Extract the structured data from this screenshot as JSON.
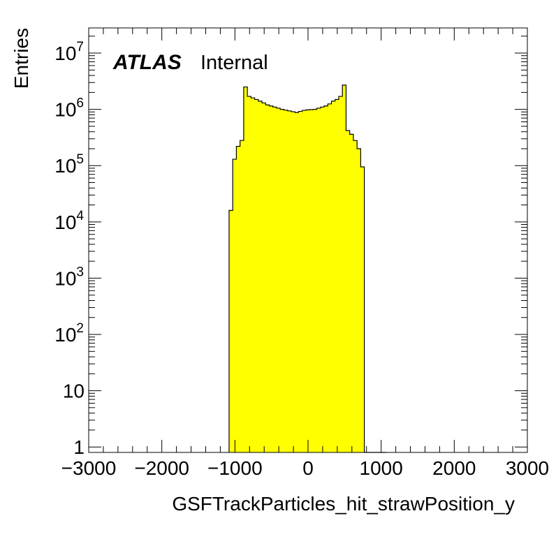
{
  "chart_data": {
    "type": "bar",
    "title": "",
    "xlabel": "GSFTrackParticles_hit_strawPosition_y",
    "ylabel": "Entries",
    "xlim": [
      -3000,
      3000
    ],
    "ylim": [
      0.8,
      28000000
    ],
    "log_y": true,
    "grid": false,
    "legend": "none",
    "fill_color": "#ffff00",
    "line_color": "#000000",
    "label": {
      "experiment": "ATLAS",
      "status": "Internal"
    },
    "x_ticks": [
      -3000,
      -2000,
      -1000,
      0,
      1000,
      2000,
      3000
    ],
    "x_tick_labels": [
      "−3000",
      "−2000",
      "−1000",
      "0",
      "1000",
      "2000",
      "3000"
    ],
    "y_ticks": [
      {
        "value": 1,
        "base": "1",
        "exp": ""
      },
      {
        "value": 10,
        "base": "10",
        "exp": ""
      },
      {
        "value": 100,
        "base": "10",
        "exp": "2"
      },
      {
        "value": 1000,
        "base": "10",
        "exp": "3"
      },
      {
        "value": 10000,
        "base": "10",
        "exp": "4"
      },
      {
        "value": 100000,
        "base": "10",
        "exp": "5"
      },
      {
        "value": 1000000,
        "base": "10",
        "exp": "6"
      },
      {
        "value": 10000000,
        "base": "10",
        "exp": "7"
      }
    ],
    "bin_edges": [
      -1080,
      -1030,
      -980,
      -930,
      -880,
      -830,
      -780,
      -730,
      -680,
      -630,
      -580,
      -530,
      -480,
      -430,
      -380,
      -330,
      -280,
      -230,
      -180,
      -130,
      -80,
      -30,
      20,
      70,
      120,
      170,
      220,
      270,
      320,
      370,
      420,
      470,
      520,
      570,
      620,
      670,
      720,
      770,
      820,
      870,
      920,
      970,
      1020,
      1070
    ],
    "values": [
      16000,
      130000,
      220000,
      280000,
      2500000,
      1700000,
      1600000,
      1500000,
      1400000,
      1300000,
      1200000,
      1150000,
      1100000,
      1050000,
      1000000,
      970000,
      940000,
      910000,
      880000,
      920000,
      960000,
      980000,
      990000,
      1000000,
      1050000,
      1100000,
      1150000,
      1250000,
      1400000,
      1500000,
      1700000,
      2700000,
      420000,
      360000,
      280000,
      200000,
      95000,
      0,
      0,
      0,
      0,
      0,
      0
    ]
  }
}
